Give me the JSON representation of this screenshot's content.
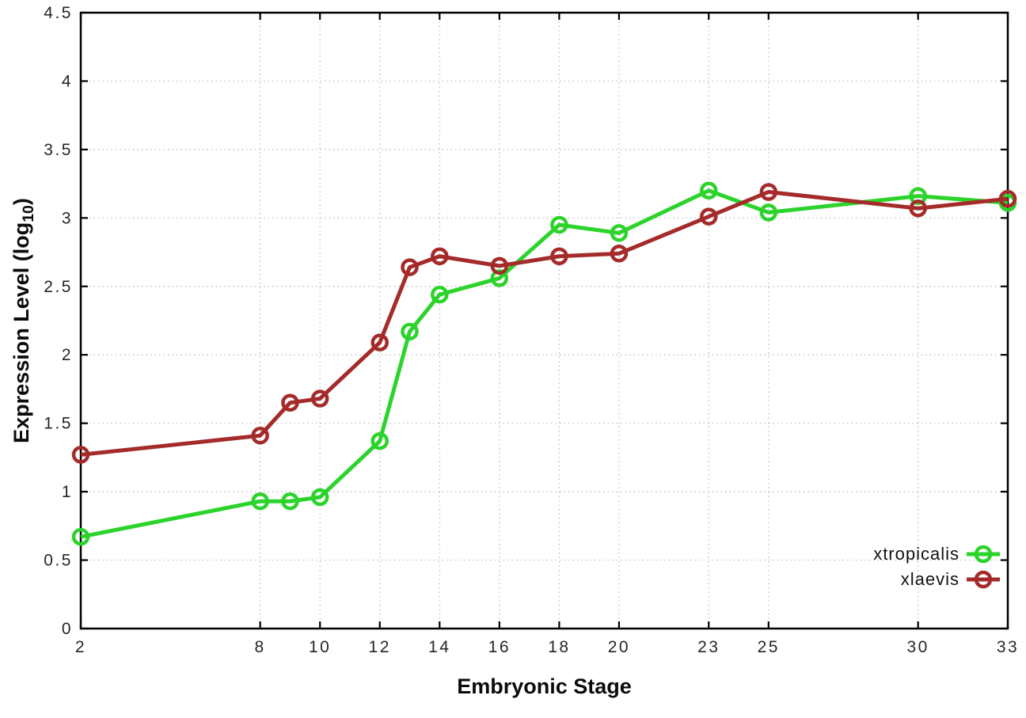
{
  "page": {
    "background": "#ffffff"
  },
  "chart_data": {
    "type": "line",
    "title": "",
    "xlabel": "Embryonic Stage",
    "ylabel": "Expression Level (log10)",
    "ylabel_parts": {
      "main": "Expression Level (log",
      "sub": "10",
      "close": ")"
    },
    "x": [
      2,
      8,
      9,
      10,
      12,
      13,
      14,
      16,
      18,
      20,
      23,
      25,
      30,
      33
    ],
    "series": [
      {
        "name": "xtropicalis",
        "color": "#2bd32b",
        "marker": "open-circle",
        "values": [
          0.67,
          0.93,
          0.93,
          0.96,
          1.37,
          2.17,
          2.44,
          2.56,
          2.95,
          2.89,
          3.2,
          3.04,
          3.16,
          3.11
        ]
      },
      {
        "name": "xlaevis",
        "color": "#a52a2a",
        "marker": "open-circle",
        "values": [
          1.27,
          1.41,
          1.65,
          1.68,
          2.09,
          2.64,
          2.72,
          2.65,
          2.72,
          2.74,
          3.01,
          3.19,
          3.07,
          3.14
        ]
      }
    ],
    "xlim": [
      2,
      33
    ],
    "ylim": [
      0,
      4.5
    ],
    "xticks": [
      2,
      8,
      10,
      12,
      14,
      16,
      18,
      20,
      23,
      25,
      30,
      33
    ],
    "xtick_labels": [
      "2",
      "8",
      "10",
      "12",
      "14",
      "16",
      "18",
      "20",
      "23",
      "25",
      "30",
      "33"
    ],
    "yticks": [
      0,
      0.5,
      1,
      1.5,
      2,
      2.5,
      3,
      3.5,
      4,
      4.5
    ],
    "ytick_labels": [
      "0",
      "0.5",
      "1",
      "1.5",
      "2",
      "2.5",
      "3",
      "3.5",
      "4",
      "4.5"
    ],
    "grid": "dotted",
    "grid_color": "#b9b9b9",
    "axis_color": "#000000",
    "legend_position": "bottom-right-inside"
  }
}
